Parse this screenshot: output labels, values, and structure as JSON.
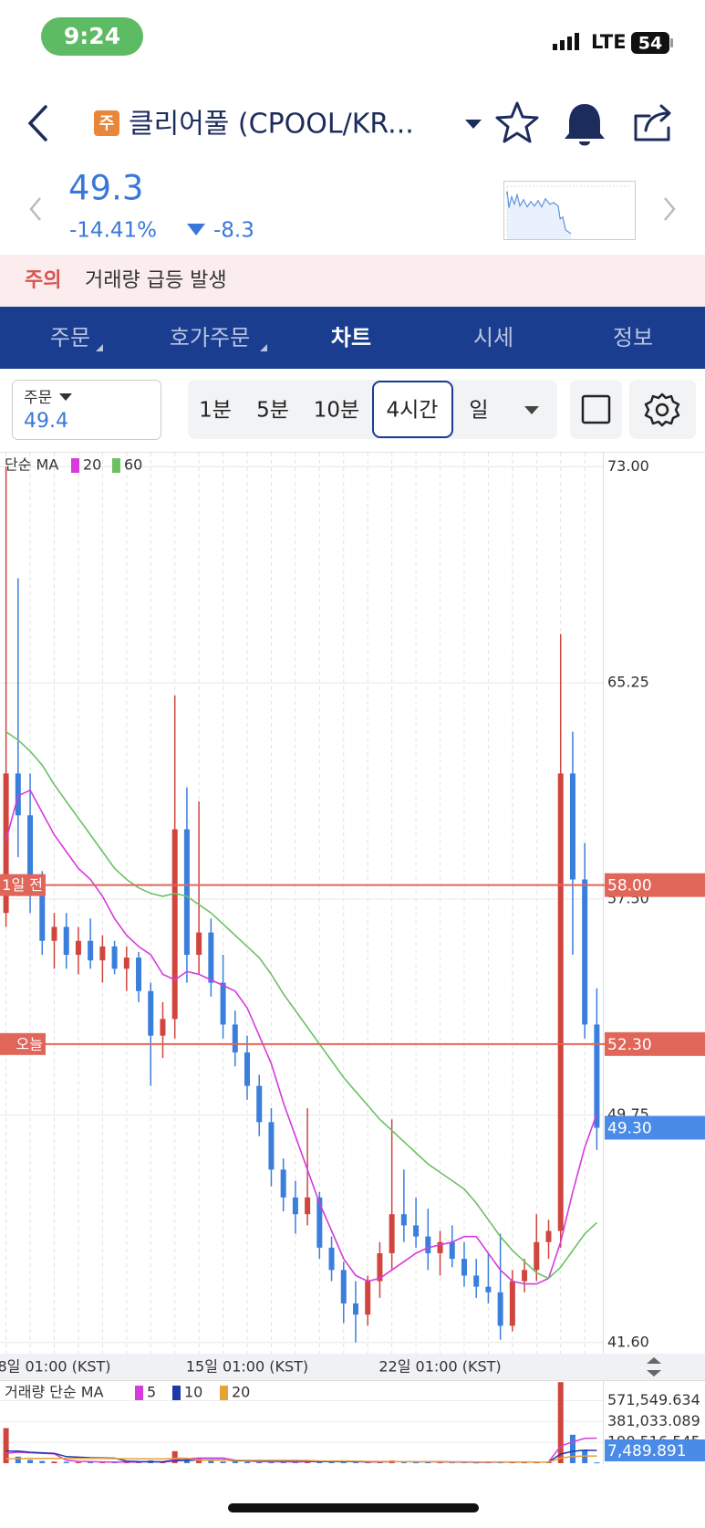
{
  "status": {
    "time": "9:24",
    "network": "LTE",
    "battery": "54"
  },
  "header": {
    "badge": "주",
    "title": "클리어풀 (CPOOL/KR..."
  },
  "quote": {
    "price": "49.3",
    "change_pct": "-14.41%",
    "change": "-8.3"
  },
  "alert": {
    "label": "주의",
    "text": "거래량 급등 발생"
  },
  "tabs": {
    "items": [
      "주문",
      "호가주문",
      "차트",
      "시세",
      "정보"
    ],
    "selected": 2
  },
  "controls": {
    "order_label": "주문",
    "order_value": "49.4",
    "intervals": [
      "1분",
      "5분",
      "10분",
      "4시간",
      "일"
    ],
    "selected": 3
  },
  "chart_data": {
    "type": "candlestick",
    "legend_title": "단순 MA",
    "categories": [
      null,
      null,
      null,
      null,
      "8일 01:00 (KST)",
      null,
      null,
      null,
      null,
      null,
      null,
      null,
      null,
      null,
      null,
      null,
      null,
      null,
      null,
      null,
      "15일 01:00 (KST)",
      null,
      null,
      null,
      null,
      null,
      null,
      null,
      null,
      null,
      null,
      null,
      null,
      null,
      null,
      null,
      "22일 01:00 (KST)",
      null,
      null,
      null,
      null,
      null,
      null,
      null,
      null,
      null,
      null,
      null,
      null,
      null
    ],
    "open": [
      57,
      62,
      60.5,
      58,
      56,
      56.5,
      55.5,
      56,
      55.3,
      55.8,
      55,
      55.4,
      54.2,
      52.6,
      53.2,
      60,
      55.5,
      56.3,
      54.5,
      53,
      52,
      50.8,
      49.5,
      47.8,
      46.8,
      46.2,
      46.8,
      45,
      44.2,
      43,
      42.6,
      43.8,
      44.8,
      46.2,
      45.8,
      45.4,
      44.8,
      45.2,
      44.6,
      44,
      43.6,
      43.4,
      42.2,
      43.8,
      44.2,
      45.2,
      45.6,
      62,
      58.2,
      53
    ],
    "high": [
      73,
      69,
      62,
      58.5,
      57,
      57,
      56.5,
      56.8,
      56.2,
      56,
      55.8,
      55.6,
      54.5,
      53.8,
      64.8,
      61.5,
      61,
      56.8,
      55.5,
      53.5,
      52.6,
      51.2,
      50,
      48.2,
      47.4,
      50,
      47,
      45.4,
      44.5,
      43.8,
      44,
      45.2,
      49.6,
      47.8,
      46.8,
      46.4,
      45.6,
      45.8,
      45.2,
      44.6,
      44.8,
      45.5,
      44.2,
      44.6,
      46.2,
      46,
      67,
      63.5,
      59.5,
      54.3
    ],
    "low": [
      56.5,
      59,
      57,
      55.5,
      55,
      55,
      54.8,
      55,
      54.5,
      54.8,
      54.2,
      53.8,
      50.8,
      51.8,
      52.5,
      54.5,
      54.8,
      54,
      52.5,
      51.5,
      50.3,
      49,
      47.2,
      46.3,
      45.5,
      45.8,
      44.6,
      43.8,
      42.3,
      41.6,
      42.2,
      43.2,
      44.2,
      45.2,
      45,
      44.2,
      44,
      44.3,
      43.6,
      43.2,
      43,
      41.7,
      42,
      43.4,
      43.8,
      44.6,
      45,
      55.5,
      52.5,
      48.5
    ],
    "close": [
      62,
      60.5,
      58,
      56,
      56.5,
      55.5,
      56,
      55.3,
      55.8,
      55,
      55.4,
      54.2,
      52.6,
      53.2,
      60,
      55.5,
      56.3,
      54.5,
      53,
      52,
      50.8,
      49.5,
      47.8,
      46.8,
      46.2,
      46.8,
      45,
      44.2,
      43,
      42.6,
      43.8,
      44.8,
      46.2,
      45.8,
      45.4,
      44.8,
      45.2,
      44.6,
      44,
      43.6,
      43.4,
      42.2,
      43.8,
      44.2,
      45.2,
      45.6,
      62,
      58.2,
      53,
      49.3
    ],
    "up_color": "#d0453e",
    "down_color": "#3a7fdc",
    "lines": [
      {
        "name": "20",
        "color": "#d63bdc",
        "values": [
          59.6,
          61.2,
          61.4,
          60.6,
          59.8,
          59.2,
          58.6,
          58.2,
          57.6,
          56.8,
          56.2,
          55.8,
          55.5,
          54.8,
          54.6,
          54.9,
          54.8,
          54.6,
          54.4,
          54.2,
          53.6,
          52.6,
          51.6,
          50.2,
          49,
          47.8,
          46.6,
          45.6,
          44.6,
          44,
          43.8,
          43.9,
          44.2,
          44.5,
          44.8,
          45,
          45.1,
          45.2,
          45.4,
          45.4,
          44.8,
          44.2,
          43.8,
          43.7,
          43.7,
          43.9,
          45.2,
          47,
          48.6,
          49.8
        ]
      },
      {
        "name": "60",
        "color": "#6cc163",
        "values": [
          63.5,
          63.2,
          62.8,
          62.3,
          61.6,
          61,
          60.4,
          59.8,
          59.2,
          58.6,
          58.2,
          57.9,
          57.7,
          57.6,
          57.7,
          57.6,
          57.3,
          57,
          56.6,
          56.2,
          55.8,
          55.4,
          54.8,
          54.1,
          53.5,
          52.9,
          52.3,
          51.7,
          51.1,
          50.6,
          50.1,
          49.6,
          49.2,
          48.8,
          48.4,
          48,
          47.7,
          47.4,
          47.1,
          46.6,
          46,
          45.4,
          44.9,
          44.5,
          44.1,
          43.9,
          44.3,
          44.9,
          45.5,
          45.9
        ]
      }
    ],
    "ylim": [
      41.2,
      73.5
    ],
    "yticks": [
      {
        "value": 73,
        "label": "73.00"
      },
      65.25,
      {
        "value": 57.5,
        "label": "57.50"
      },
      49.75,
      {
        "value": 41.6,
        "label": "41.60"
      }
    ],
    "grid": true,
    "price_lines": [
      {
        "label": "1일 전",
        "value": 58,
        "value_label": "58.00",
        "color": "#e0665a"
      },
      {
        "label": "오늘",
        "value": 52.3,
        "value_label": "52.30",
        "color": "#e0665a"
      }
    ],
    "current": {
      "value": 49.3,
      "value_label": "49.30",
      "color": "#4a8be8"
    },
    "volume": {
      "legend_title": "거래량 단순 MA",
      "values": [
        320000,
        60000,
        30000,
        20000,
        15000,
        12000,
        10000,
        12000,
        9000,
        10000,
        8000,
        9000,
        25000,
        12000,
        110000,
        50000,
        40000,
        20000,
        15000,
        14000,
        12000,
        10000,
        15000,
        12000,
        10000,
        22000,
        12000,
        14000,
        13000,
        12000,
        10000,
        11000,
        25000,
        12000,
        9000,
        8000,
        9000,
        8000,
        9000,
        7000,
        8000,
        16000,
        9000,
        8000,
        12000,
        14000,
        740000,
        260000,
        120000,
        7489.891
      ],
      "lines": [
        {
          "name": "5",
          "color": "#d63bdc",
          "values": [
            90000,
            100000,
            95000,
            90000,
            85000,
            27000,
            17000,
            14000,
            12000,
            11000,
            10000,
            10000,
            13000,
            13000,
            33000,
            41000,
            47000,
            47000,
            47000,
            28000,
            20000,
            14000,
            13000,
            13000,
            12000,
            14000,
            14000,
            14000,
            14000,
            15000,
            12000,
            12000,
            14000,
            14000,
            13000,
            13000,
            13000,
            9000,
            9000,
            8000,
            8000,
            10000,
            10000,
            10000,
            11000,
            12000,
            157000,
            195000,
            227000,
            228000
          ]
        },
        {
          "name": "10",
          "color": "#1f3aa8",
          "values": [
            110000,
            110000,
            100000,
            95000,
            90000,
            60000,
            55000,
            50000,
            48000,
            46000,
            19000,
            14000,
            13000,
            12000,
            22000,
            26000,
            29000,
            30000,
            30000,
            21000,
            23000,
            23000,
            22000,
            21000,
            20000,
            18000,
            15000,
            15000,
            14000,
            14000,
            13000,
            13000,
            14000,
            14000,
            13000,
            13000,
            13000,
            12000,
            12000,
            11000,
            11000,
            11000,
            10000,
            10000,
            10000,
            10000,
            83000,
            108000,
            119000,
            117000
          ]
        },
        {
          "name": "20",
          "color": "#e7a13a",
          "values": [
            40000,
            42000,
            43000,
            44000,
            44000,
            44000,
            44000,
            44000,
            43000,
            42000,
            41000,
            40000,
            40000,
            40000,
            45000,
            46000,
            27000,
            27000,
            27000,
            27000,
            26000,
            26000,
            26000,
            26000,
            26000,
            25000,
            21000,
            20000,
            20000,
            19000,
            17000,
            16000,
            16000,
            15000,
            14000,
            14000,
            13000,
            12000,
            12000,
            12000,
            12000,
            12000,
            12000,
            12000,
            11000,
            11000,
            47000,
            60000,
            66000,
            66000
          ]
        }
      ],
      "ylim": [
        0,
        750000
      ],
      "yticks": [
        {
          "value": 571549.634,
          "label": "571,549.634"
        },
        {
          "value": 381033.089,
          "label": "381,033.089"
        },
        {
          "value": 190516.545,
          "label": "190,516.545"
        }
      ],
      "current": {
        "value": 7489.891,
        "label": "7,489.891",
        "color": "#4a8be8"
      }
    }
  }
}
